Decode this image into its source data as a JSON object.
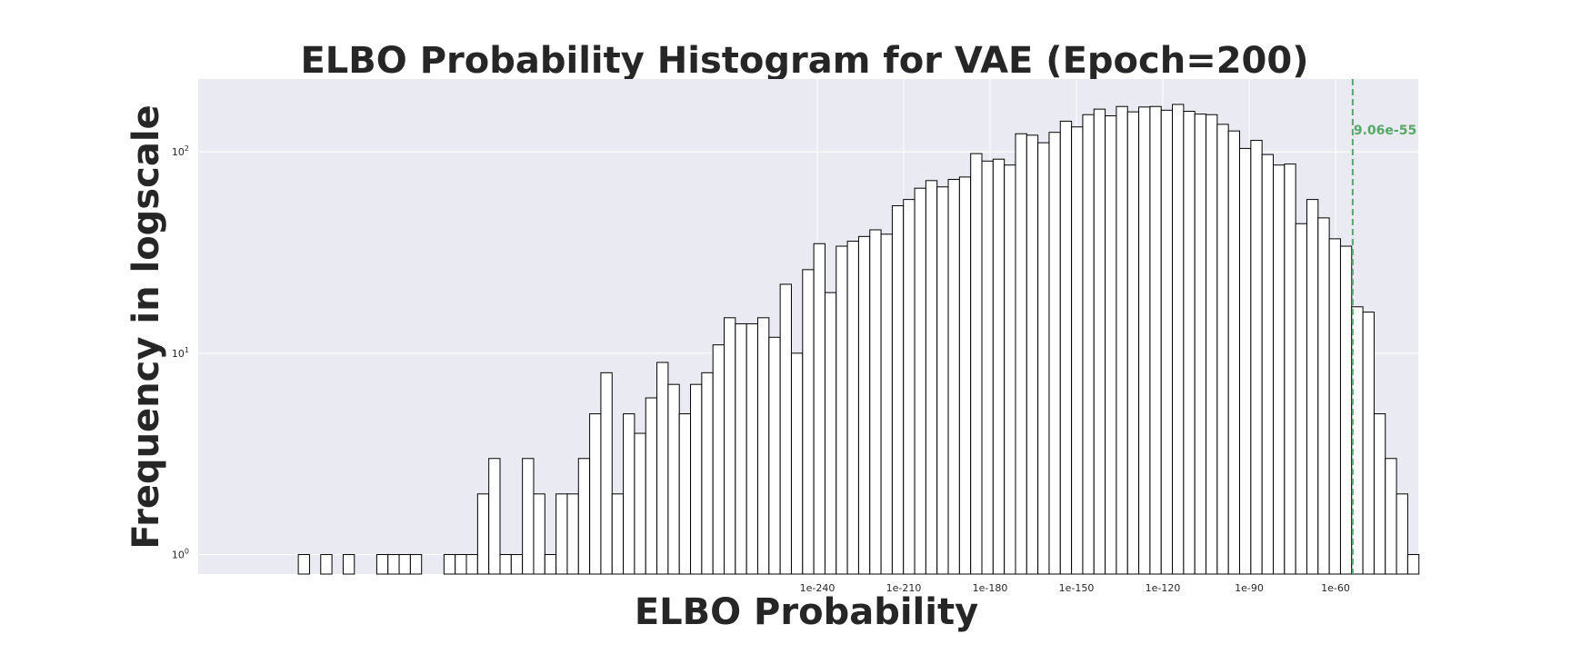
{
  "chart_data": {
    "type": "bar",
    "title": "ELBO Probability Histogram for VAE (Epoch=200)",
    "xlabel": "ELBO Probability",
    "ylabel": "Frequency in logscale",
    "yscale": "log",
    "ylim": [
      0.8,
      230
    ],
    "grid": true,
    "x_ticks": [
      {
        "label": "1e-240",
        "value": -240
      },
      {
        "label": "1e-210",
        "value": -210
      },
      {
        "label": "1e-180",
        "value": -180
      },
      {
        "label": "1e-150",
        "value": -150
      },
      {
        "label": "1e-120",
        "value": -120
      },
      {
        "label": "1e-90",
        "value": -90
      },
      {
        "label": "1e-60",
        "value": -60
      }
    ],
    "y_ticks": [
      {
        "base": "10",
        "exp": "0",
        "value": 1
      },
      {
        "base": "10",
        "exp": "1",
        "value": 10
      },
      {
        "base": "10",
        "exp": "2",
        "value": 100
      }
    ],
    "values": [
      0,
      0,
      0,
      0,
      0,
      1,
      0,
      1,
      0,
      1,
      0,
      0,
      1,
      1,
      1,
      1,
      0,
      0,
      1,
      1,
      1,
      2,
      3,
      1,
      1,
      3,
      2,
      1,
      2,
      2,
      3,
      5,
      8,
      2,
      5,
      4,
      6,
      9,
      7,
      5,
      7,
      8,
      11,
      15,
      14,
      14,
      15,
      12,
      22,
      10,
      26,
      35,
      20,
      34,
      36,
      38,
      41,
      39,
      54,
      58,
      66,
      72,
      67,
      73,
      75,
      98,
      90,
      92,
      86,
      123,
      121,
      111,
      125,
      142,
      133,
      153,
      163,
      151,
      168,
      158,
      167,
      168,
      161,
      172,
      159,
      154,
      153,
      137,
      127,
      104,
      114,
      97,
      86,
      87,
      44,
      58,
      47,
      37,
      34,
      17,
      16,
      5,
      3,
      2,
      1
    ],
    "reference_line": {
      "label": "9.06e-55",
      "value": -54.04,
      "color": "#55a868"
    },
    "bar_fill": "#ffffff",
    "bar_edge": "#000000",
    "background": "#eaeaf2"
  }
}
